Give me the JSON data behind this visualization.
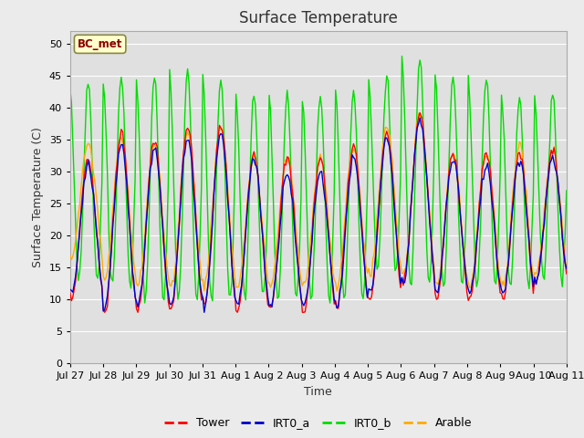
{
  "title": "Surface Temperature",
  "ylabel": "Surface Temperature (C)",
  "xlabel": "Time",
  "annotation": "BC_met",
  "ylim": [
    0,
    52
  ],
  "yticks": [
    0,
    5,
    10,
    15,
    20,
    25,
    30,
    35,
    40,
    45,
    50
  ],
  "xtick_labels": [
    "Jul 27",
    "Jul 28",
    "Jul 29",
    "Jul 30",
    "Jul 31",
    "Aug 1",
    "Aug 2",
    "Aug 3",
    "Aug 4",
    "Aug 5",
    "Aug 6",
    "Aug 7",
    "Aug 8",
    "Aug 9",
    "Aug 10",
    "Aug 11"
  ],
  "series": [
    "Tower",
    "IRT0_a",
    "IRT0_b",
    "Arable"
  ],
  "colors": [
    "#ff0000",
    "#0000cc",
    "#00dd00",
    "#ffaa00"
  ],
  "bg_color": "#ebebeb",
  "plot_bg_color": "#e0e0e0",
  "title_fontsize": 12,
  "label_fontsize": 9,
  "tick_fontsize": 8
}
